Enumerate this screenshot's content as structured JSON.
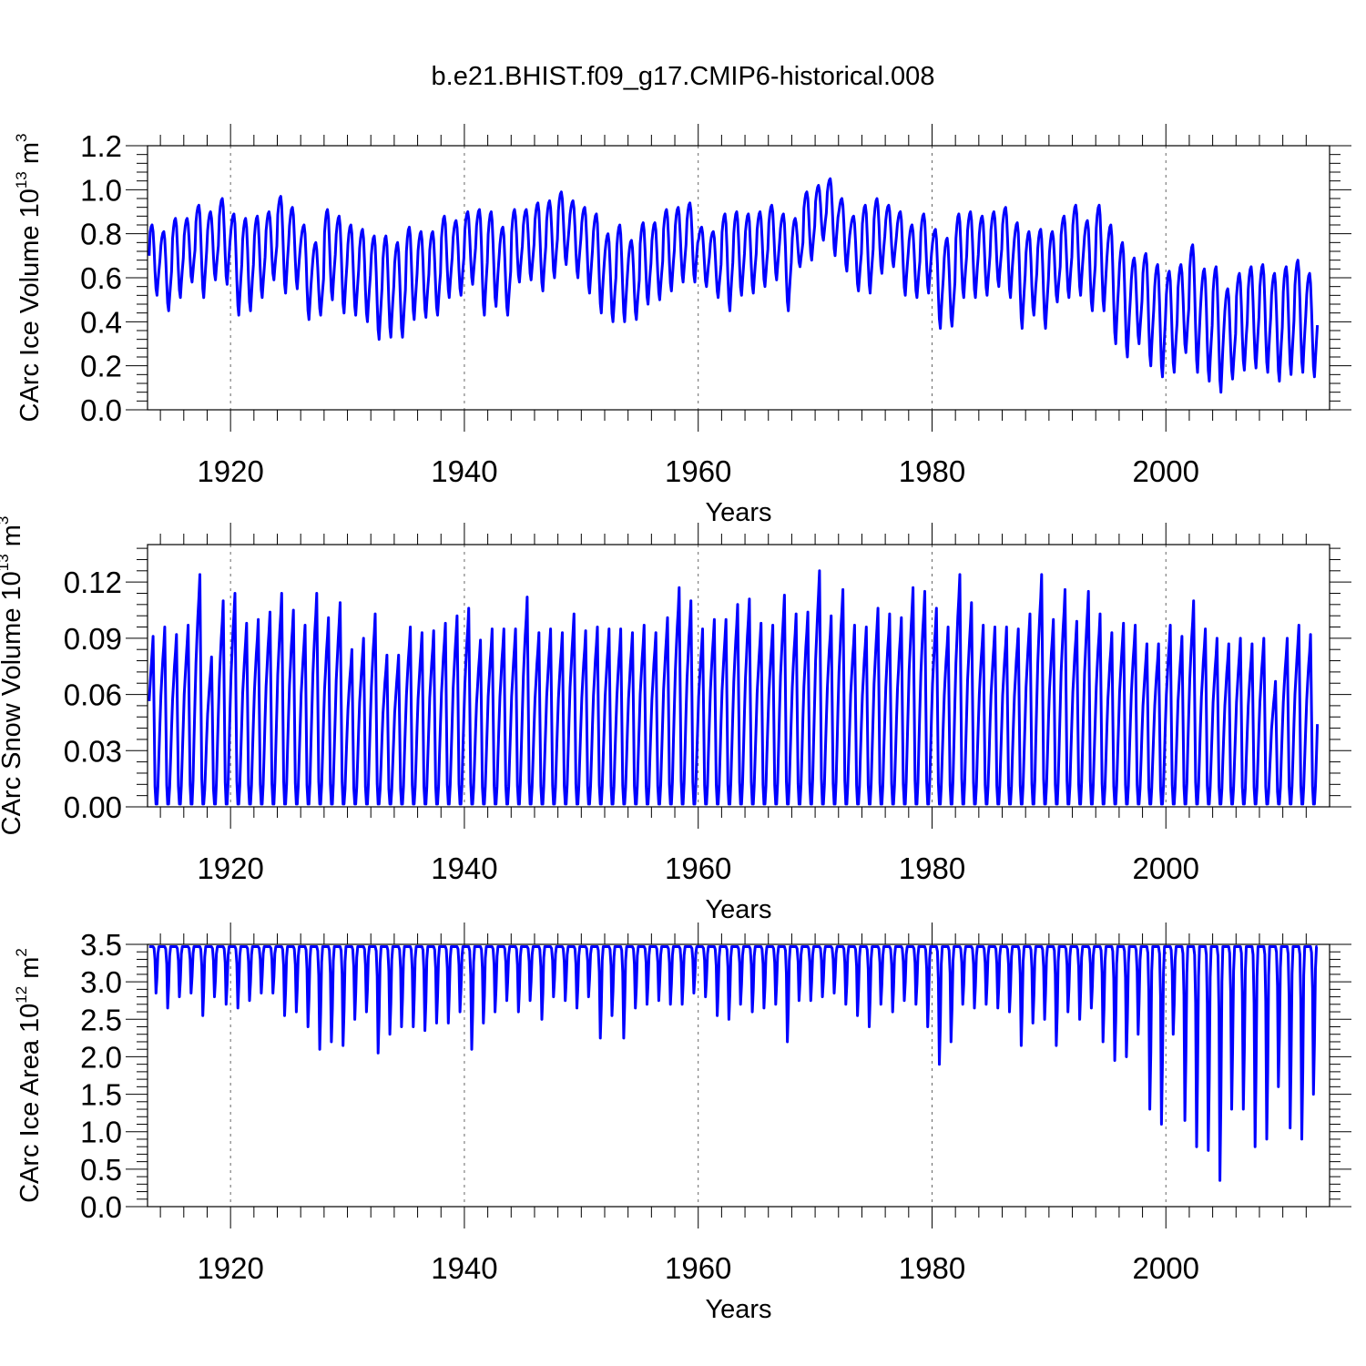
{
  "title": "b.e21.BHIST.f09_g17.CMIP6-historical.008",
  "line_color": "#0000ff",
  "chart_data": [
    {
      "type": "line",
      "name": "ice-volume",
      "title": "b.e21.BHIST.f09_g17.CMIP6-historical.008",
      "ylabel": {
        "base": "CArc Ice Volume 10",
        "exp1": "13",
        "unit": " m",
        "exp2": "3"
      },
      "xlabel": "Years",
      "xlim": [
        1912.9,
        2014.0
      ],
      "ylim": [
        0.0,
        1.2
      ],
      "yticks": [
        "0.0",
        "0.2",
        "0.4",
        "0.6",
        "0.8",
        "1.0",
        "1.2"
      ],
      "ytick_values": [
        0.0,
        0.2,
        0.4,
        0.6,
        0.8,
        1.0,
        1.2
      ],
      "xticks": [
        "1920",
        "1940",
        "1960",
        "1980",
        "2000"
      ],
      "xtick_values": [
        1920,
        1940,
        1960,
        1980,
        2000
      ],
      "series": [
        {
          "name": "CArc Ice Volume",
          "start_year": 1913,
          "annual_max": [
            0.84,
            0.81,
            0.87,
            0.87,
            0.93,
            0.9,
            0.96,
            0.89,
            0.87,
            0.88,
            0.9,
            0.97,
            0.92,
            0.84,
            0.76,
            0.91,
            0.88,
            0.84,
            0.82,
            0.79,
            0.79,
            0.76,
            0.83,
            0.81,
            0.81,
            0.88,
            0.86,
            0.9,
            0.91,
            0.9,
            0.83,
            0.91,
            0.91,
            0.94,
            0.95,
            0.99,
            0.95,
            0.92,
            0.89,
            0.8,
            0.84,
            0.77,
            0.85,
            0.85,
            0.91,
            0.92,
            0.94,
            0.83,
            0.81,
            0.89,
            0.9,
            0.89,
            0.9,
            0.93,
            0.89,
            0.87,
            0.99,
            1.02,
            1.05,
            0.96,
            0.88,
            0.93,
            0.96,
            0.93,
            0.9,
            0.84,
            0.89,
            0.82,
            0.78,
            0.89,
            0.9,
            0.88,
            0.9,
            0.92,
            0.85,
            0.81,
            0.82,
            0.81,
            0.88,
            0.93,
            0.86,
            0.93,
            0.84,
            0.76,
            0.69,
            0.71,
            0.66,
            0.63,
            0.66,
            0.75,
            0.64,
            0.65,
            0.55,
            0.62,
            0.65,
            0.66,
            0.62,
            0.65,
            0.68,
            0.62
          ],
          "annual_min": [
            0.52,
            0.45,
            0.51,
            0.58,
            0.51,
            0.59,
            0.57,
            0.43,
            0.45,
            0.51,
            0.59,
            0.53,
            0.55,
            0.41,
            0.43,
            0.5,
            0.44,
            0.43,
            0.4,
            0.32,
            0.33,
            0.33,
            0.41,
            0.42,
            0.43,
            0.51,
            0.52,
            0.57,
            0.43,
            0.47,
            0.43,
            0.58,
            0.59,
            0.54,
            0.6,
            0.66,
            0.6,
            0.53,
            0.44,
            0.4,
            0.4,
            0.41,
            0.48,
            0.5,
            0.54,
            0.58,
            0.58,
            0.56,
            0.51,
            0.45,
            0.52,
            0.53,
            0.56,
            0.59,
            0.45,
            0.65,
            0.68,
            0.77,
            0.7,
            0.63,
            0.54,
            0.53,
            0.62,
            0.65,
            0.52,
            0.51,
            0.53,
            0.37,
            0.38,
            0.51,
            0.51,
            0.52,
            0.56,
            0.51,
            0.37,
            0.43,
            0.37,
            0.49,
            0.51,
            0.52,
            0.45,
            0.45,
            0.3,
            0.24,
            0.3,
            0.2,
            0.15,
            0.17,
            0.26,
            0.17,
            0.13,
            0.08,
            0.14,
            0.18,
            0.19,
            0.17,
            0.13,
            0.16,
            0.17,
            0.15
          ]
        }
      ]
    },
    {
      "type": "line",
      "name": "snow-volume",
      "ylabel": {
        "base": "CArc Snow Volume 10",
        "exp1": "13",
        "unit": " m",
        "exp2": "3"
      },
      "xlabel": "Years",
      "xlim": [
        1912.9,
        2014.0
      ],
      "ylim": [
        0.0,
        0.14
      ],
      "yticks": [
        "0.00",
        "0.03",
        "0.06",
        "0.09",
        "0.12"
      ],
      "ytick_values": [
        0.0,
        0.03,
        0.06,
        0.09,
        0.12
      ],
      "xticks": [
        "1920",
        "1940",
        "1960",
        "1980",
        "2000"
      ],
      "xtick_values": [
        1920,
        1940,
        1960,
        1980,
        2000
      ],
      "series": [
        {
          "name": "CArc Snow Volume",
          "start_year": 1913,
          "annual_max": [
            0.091,
            0.096,
            0.092,
            0.097,
            0.124,
            0.08,
            0.11,
            0.114,
            0.098,
            0.1,
            0.104,
            0.114,
            0.105,
            0.097,
            0.114,
            0.101,
            0.109,
            0.084,
            0.09,
            0.103,
            0.081,
            0.081,
            0.096,
            0.093,
            0.094,
            0.098,
            0.102,
            0.106,
            0.089,
            0.095,
            0.095,
            0.095,
            0.112,
            0.093,
            0.095,
            0.093,
            0.103,
            0.094,
            0.096,
            0.095,
            0.095,
            0.093,
            0.097,
            0.093,
            0.101,
            0.117,
            0.11,
            0.095,
            0.1,
            0.1,
            0.108,
            0.111,
            0.098,
            0.097,
            0.113,
            0.103,
            0.104,
            0.126,
            0.102,
            0.116,
            0.097,
            0.096,
            0.106,
            0.103,
            0.101,
            0.117,
            0.115,
            0.106,
            0.096,
            0.124,
            0.109,
            0.097,
            0.096,
            0.096,
            0.095,
            0.103,
            0.124,
            0.1,
            0.116,
            0.099,
            0.115,
            0.103,
            0.093,
            0.098,
            0.097,
            0.087,
            0.087,
            0.097,
            0.091,
            0.11,
            0.095,
            0.09,
            0.087,
            0.09,
            0.087,
            0.09,
            0.067,
            0.09,
            0.097,
            0.092
          ]
        }
      ]
    },
    {
      "type": "line",
      "name": "ice-area",
      "ylabel": {
        "base": "CArc Ice Area 10",
        "exp1": "12",
        "unit": " m",
        "exp2": "2"
      },
      "xlabel": "Years",
      "xlim": [
        1912.9,
        2014.0
      ],
      "ylim": [
        0.0,
        3.5
      ],
      "yticks": [
        "0.0",
        "0.5",
        "1.0",
        "1.5",
        "2.0",
        "2.5",
        "3.0",
        "3.5"
      ],
      "ytick_values": [
        0.0,
        0.5,
        1.0,
        1.5,
        2.0,
        2.5,
        3.0,
        3.5
      ],
      "xticks": [
        "1920",
        "1940",
        "1960",
        "1980",
        "2000"
      ],
      "xtick_values": [
        1920,
        1940,
        1960,
        1980,
        2000
      ],
      "series": [
        {
          "name": "CArc Ice Area",
          "start_year": 1913,
          "max_value": 3.47,
          "annual_min": [
            2.85,
            2.65,
            2.8,
            2.85,
            2.55,
            2.8,
            2.7,
            2.65,
            2.75,
            2.85,
            2.85,
            2.55,
            2.6,
            2.4,
            2.1,
            2.2,
            2.15,
            2.5,
            2.6,
            2.05,
            2.3,
            2.4,
            2.4,
            2.35,
            2.45,
            2.45,
            2.6,
            2.1,
            2.45,
            2.6,
            2.75,
            2.6,
            2.75,
            2.5,
            2.8,
            2.75,
            2.65,
            2.8,
            2.25,
            2.55,
            2.25,
            2.65,
            2.7,
            2.75,
            2.7,
            2.7,
            2.85,
            2.8,
            2.55,
            2.5,
            2.7,
            2.6,
            2.65,
            2.7,
            2.2,
            2.75,
            2.75,
            2.8,
            2.85,
            2.7,
            2.55,
            2.4,
            2.7,
            2.6,
            2.75,
            2.7,
            2.4,
            1.9,
            2.2,
            2.7,
            2.65,
            2.7,
            2.65,
            2.6,
            2.15,
            2.45,
            2.5,
            2.15,
            2.6,
            2.5,
            2.65,
            2.2,
            1.95,
            2.0,
            2.3,
            1.3,
            1.1,
            2.3,
            1.15,
            0.8,
            0.75,
            0.35,
            1.3,
            1.3,
            0.8,
            0.9,
            1.6,
            1.05,
            0.9,
            1.5
          ]
        }
      ]
    }
  ]
}
